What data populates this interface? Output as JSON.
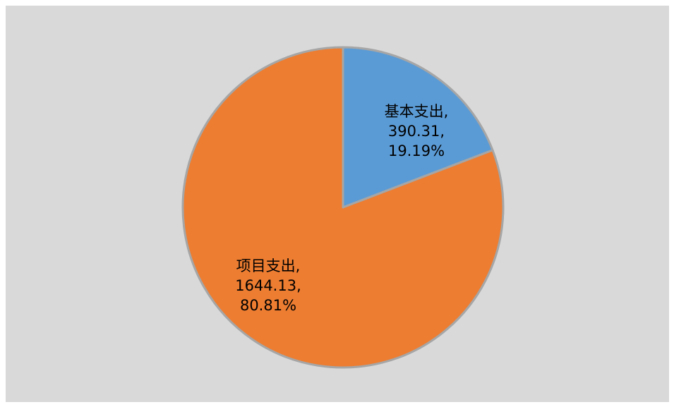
{
  "chart_data": {
    "type": "pie",
    "title": "",
    "slices": [
      {
        "name": "基本支出",
        "value": 390.31,
        "percent": "19.19%",
        "label_lines": [
          "基本支出,",
          "390.31,",
          "19.19%"
        ],
        "color": "#5b9bd5"
      },
      {
        "name": "项目支出",
        "value": 1644.13,
        "percent": "80.81%",
        "label_lines": [
          "项目支出,",
          "1644.13,",
          "80.81%"
        ],
        "color": "#ed7d31"
      }
    ],
    "start_angle_deg": 0,
    "direction": "clockwise",
    "border_color": "#a6a6a6",
    "background": "#d9d9d9",
    "legend": "none"
  }
}
